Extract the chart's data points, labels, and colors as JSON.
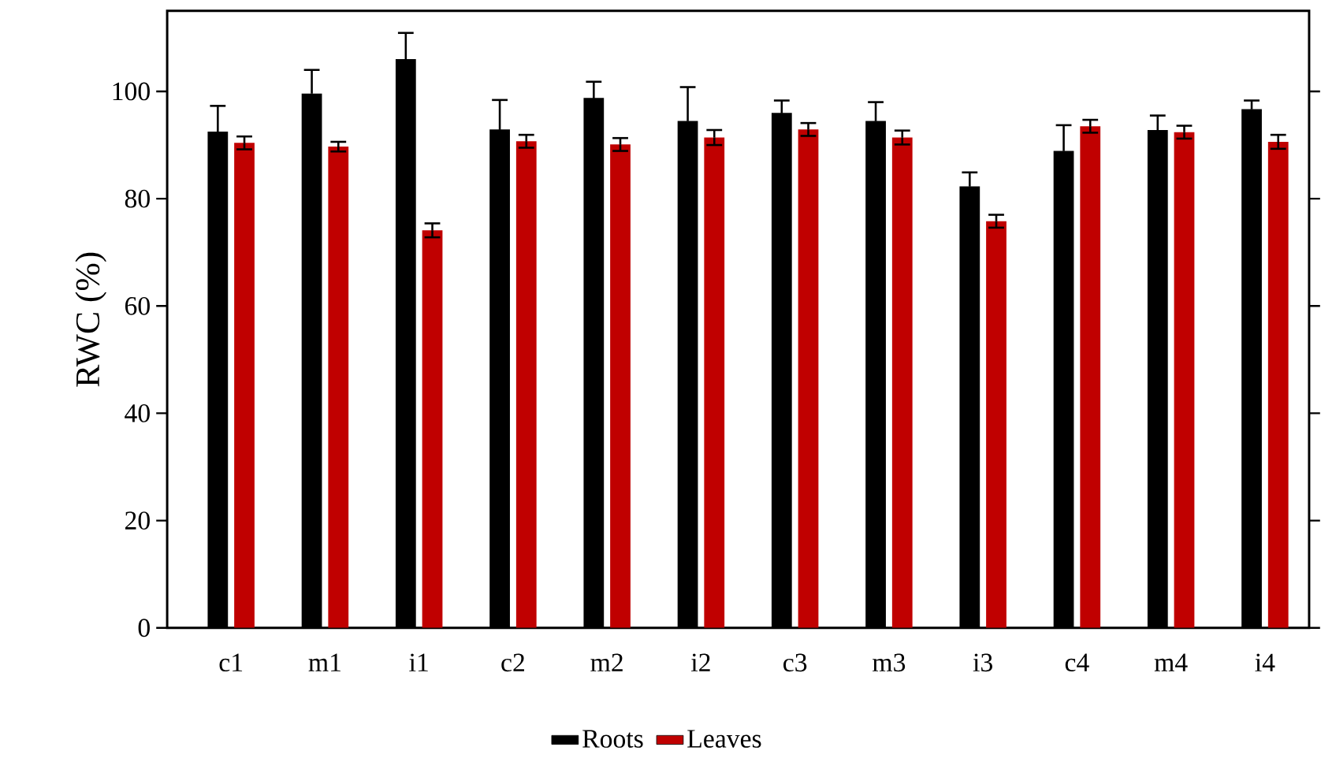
{
  "chart_data": {
    "type": "bar",
    "ylabel": "RWC (%)",
    "categories": [
      "c1",
      "m1",
      "i1",
      "c2",
      "m2",
      "i2",
      "c3",
      "m3",
      "i3",
      "c4",
      "m4",
      "i4"
    ],
    "series": [
      {
        "name": "Roots",
        "color": "#000000",
        "values": [
          92.5,
          99.6,
          106,
          92.9,
          98.8,
          94.5,
          96.0,
          94.5,
          82.3,
          88.9,
          92.8,
          96.7
        ],
        "errors": [
          4.8,
          4.4,
          4.9,
          5.5,
          3.0,
          6.3,
          2.3,
          3.5,
          2.6,
          4.8,
          2.7,
          1.6
        ]
      },
      {
        "name": "Leaves",
        "color": "#c00000",
        "values": [
          90.4,
          89.7,
          74.1,
          90.7,
          90.1,
          91.4,
          92.9,
          91.4,
          75.8,
          93.5,
          92.4,
          90.6
        ],
        "errors": [
          1.2,
          0.9,
          1.3,
          1.2,
          1.2,
          1.4,
          1.2,
          1.3,
          1.2,
          1.2,
          1.2,
          1.3
        ]
      }
    ],
    "ylim": [
      0,
      115
    ],
    "yticks": [
      0,
      20,
      40,
      60,
      80,
      100
    ],
    "legend": "bottom"
  }
}
